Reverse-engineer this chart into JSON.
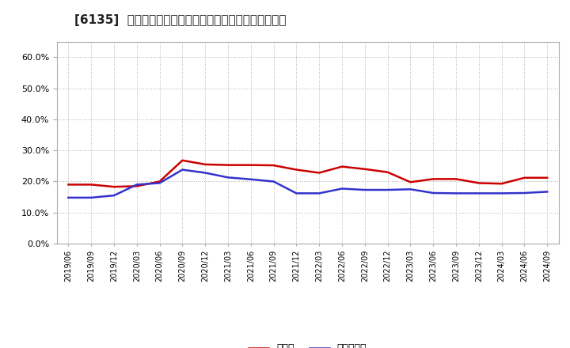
{
  "title": "[6135]  現預金、有利子負債の総資産に対する比率の推移",
  "x_labels": [
    "2019/06",
    "2019/09",
    "2019/12",
    "2020/03",
    "2020/06",
    "2020/09",
    "2020/12",
    "2021/03",
    "2021/06",
    "2021/09",
    "2021/12",
    "2022/03",
    "2022/06",
    "2022/09",
    "2022/12",
    "2023/03",
    "2023/06",
    "2023/09",
    "2023/12",
    "2024/03",
    "2024/06",
    "2024/09"
  ],
  "cash_values": [
    0.19,
    0.19,
    0.183,
    0.185,
    0.2,
    0.268,
    0.255,
    0.253,
    0.253,
    0.252,
    0.238,
    0.228,
    0.248,
    0.24,
    0.23,
    0.198,
    0.208,
    0.208,
    0.195,
    0.193,
    0.212,
    0.212
  ],
  "debt_values": [
    0.148,
    0.148,
    0.155,
    0.19,
    0.195,
    0.238,
    0.228,
    0.213,
    0.207,
    0.2,
    0.162,
    0.162,
    0.177,
    0.173,
    0.173,
    0.175,
    0.163,
    0.162,
    0.162,
    0.162,
    0.163,
    0.167
  ],
  "cash_color": "#cc0000",
  "debt_color": "#3333cc",
  "background_color": "#ffffff",
  "plot_bg_color": "#ffffff",
  "grid_color": "#aaaaaa",
  "ylim": [
    0.0,
    0.65
  ],
  "yticks": [
    0.0,
    0.1,
    0.2,
    0.3,
    0.4,
    0.5,
    0.6
  ],
  "legend_cash": "現預金",
  "legend_debt": "有利子負債",
  "line_width": 1.8
}
